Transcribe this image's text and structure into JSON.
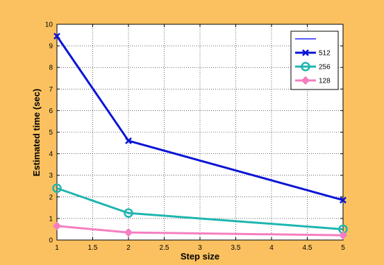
{
  "chart_data": {
    "type": "line",
    "xlabel": "Step size",
    "ylabel": "Estimated time (sec)",
    "xlim": [
      1,
      5
    ],
    "ylim": [
      0,
      10
    ],
    "x_ticks": [
      "1",
      "1.5",
      "2",
      "2.5",
      "3",
      "3.5",
      "4",
      "4.5",
      "5"
    ],
    "y_ticks": [
      "0",
      "1",
      "2",
      "3",
      "4",
      "5",
      "6",
      "7",
      "8",
      "9",
      "10"
    ],
    "grid": true,
    "legend_position": "top-right",
    "series": [
      {
        "name": "",
        "color": "#2020ff",
        "marker": "none",
        "x": [],
        "y": []
      },
      {
        "name": "512",
        "color": "#0a14d6",
        "marker": "x",
        "x": [
          1,
          2,
          5
        ],
        "y": [
          9.45,
          4.6,
          1.85
        ]
      },
      {
        "name": "256",
        "color": "#1fb5b0",
        "marker": "circle",
        "x": [
          1,
          2,
          5
        ],
        "y": [
          2.4,
          1.25,
          0.5
        ]
      },
      {
        "name": "128",
        "color": "#f57ec0",
        "marker": "diamond",
        "x": [
          1,
          2,
          5
        ],
        "y": [
          0.65,
          0.35,
          0.22
        ]
      }
    ],
    "colors": {
      "background": "#fbc160",
      "plot_area": "#ffffff"
    }
  }
}
